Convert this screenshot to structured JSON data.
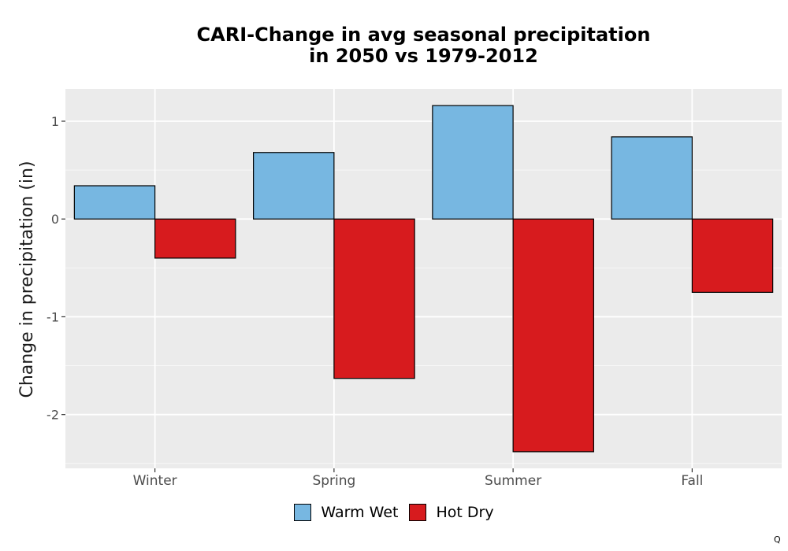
{
  "chart_data": {
    "type": "bar",
    "title": [
      "CARI-Change in avg seasonal precipitation",
      "in 2050 vs 1979-2012"
    ],
    "xlabel": "",
    "ylabel": "Change in precipitation (in)",
    "categories": [
      "Winter",
      "Spring",
      "Summer",
      "Fall"
    ],
    "series": [
      {
        "name": "Warm Wet",
        "color": "#77b7e1",
        "values": [
          0.34,
          0.68,
          1.16,
          0.84
        ]
      },
      {
        "name": "Hot Dry",
        "color": "#d71b1e",
        "values": [
          -0.4,
          -1.63,
          -2.38,
          -0.75
        ]
      }
    ],
    "ylim": [
      -2.55,
      1.33
    ],
    "yticks": [
      1,
      0,
      -1,
      -2
    ],
    "ytick_labels": [
      "1",
      "0",
      "-1",
      "-2"
    ],
    "grid": true,
    "legend_position": "bottom"
  },
  "corner_mark": "Q"
}
